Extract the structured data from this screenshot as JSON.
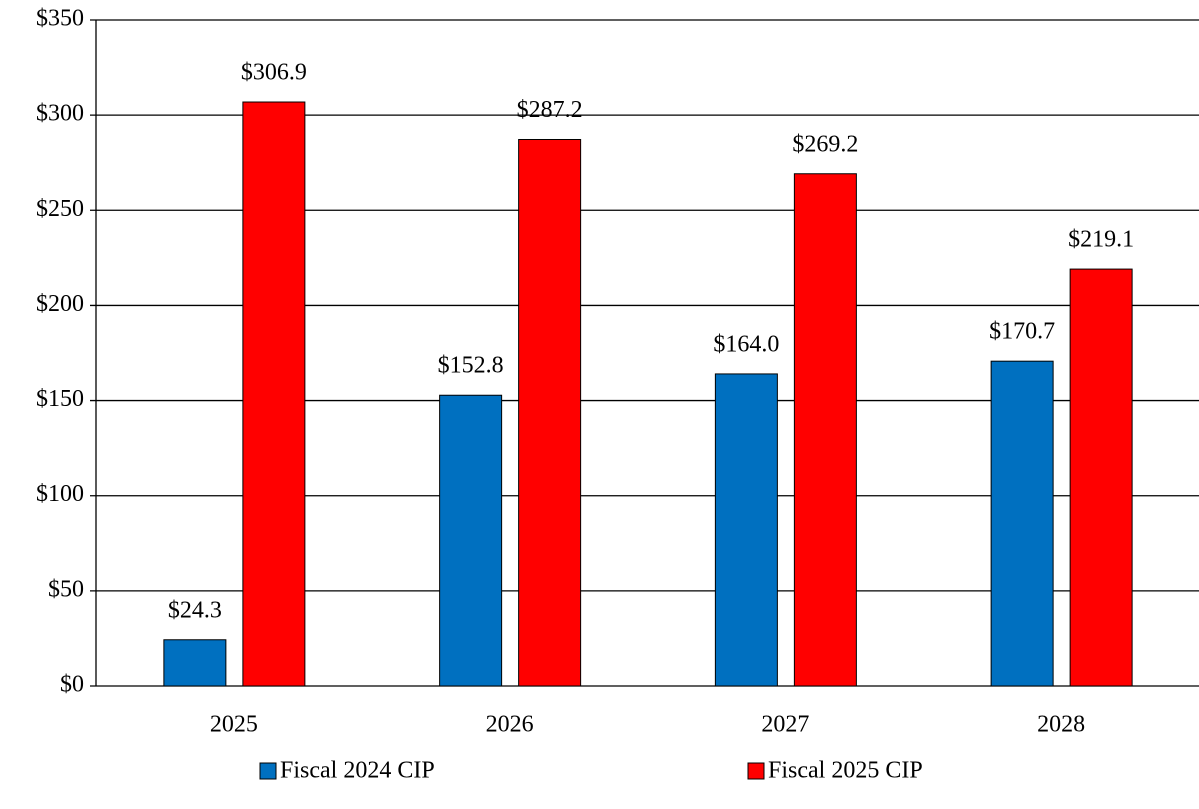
{
  "chart_data": {
    "type": "bar",
    "categories": [
      "2025",
      "2026",
      "2027",
      "2028"
    ],
    "series": [
      {
        "name": "Fiscal 2024 CIP",
        "color": "#0070c0",
        "values": [
          24.3,
          152.8,
          164.0,
          170.7
        ],
        "value_labels": [
          "$24.3",
          "$152.8",
          "$164.0",
          "$170.7"
        ]
      },
      {
        "name": "Fiscal 2025 CIP",
        "color": "#ff0000",
        "values": [
          306.9,
          287.2,
          269.2,
          219.1
        ],
        "value_labels": [
          "$306.9",
          "$287.2",
          "$269.2",
          "$219.1"
        ]
      }
    ],
    "ylim": [
      0,
      350
    ],
    "yticks": [
      {
        "value": 0,
        "label": "$0"
      },
      {
        "value": 50,
        "label": "$50"
      },
      {
        "value": 100,
        "label": "$100"
      },
      {
        "value": 150,
        "label": "$150"
      },
      {
        "value": 200,
        "label": "$200"
      },
      {
        "value": 250,
        "label": "$250"
      },
      {
        "value": 300,
        "label": "$300"
      },
      {
        "value": 350,
        "label": "$350"
      }
    ],
    "grid": true,
    "legend": "bottom"
  }
}
